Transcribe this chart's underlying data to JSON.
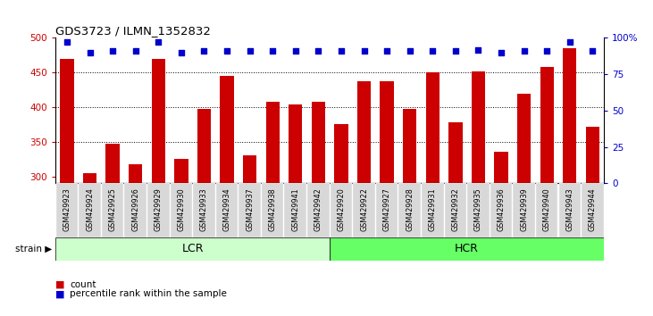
{
  "title": "GDS3723 / ILMN_1352832",
  "categories": [
    "GSM429923",
    "GSM429924",
    "GSM429925",
    "GSM429926",
    "GSM429929",
    "GSM429930",
    "GSM429933",
    "GSM429934",
    "GSM429937",
    "GSM429938",
    "GSM429941",
    "GSM429942",
    "GSM429920",
    "GSM429922",
    "GSM429927",
    "GSM429928",
    "GSM429931",
    "GSM429932",
    "GSM429935",
    "GSM429936",
    "GSM429939",
    "GSM429940",
    "GSM429943",
    "GSM429944"
  ],
  "bar_values": [
    470,
    305,
    347,
    318,
    470,
    325,
    397,
    445,
    330,
    408,
    404,
    408,
    375,
    437,
    437,
    397,
    450,
    378,
    452,
    335,
    420,
    458,
    485,
    372
  ],
  "percentile_values": [
    97,
    90,
    91,
    91,
    97,
    90,
    91,
    91,
    91,
    91,
    91,
    91,
    91,
    91,
    91,
    91,
    91,
    91,
    92,
    90,
    91,
    91,
    97,
    91
  ],
  "bar_color": "#cc0000",
  "dot_color": "#0000cc",
  "ylim_left": [
    290,
    500
  ],
  "ylim_right": [
    0,
    100
  ],
  "yticks_left": [
    300,
    350,
    400,
    450,
    500
  ],
  "yticks_right": [
    0,
    25,
    50,
    75,
    100
  ],
  "grid_values": [
    350,
    400,
    450
  ],
  "lcr_count": 12,
  "hcr_count": 12,
  "lcr_label": "LCR",
  "hcr_label": "HCR",
  "strain_label": "strain",
  "legend_count": "count",
  "legend_percentile": "percentile rank within the sample",
  "background_color": "#ffffff",
  "stripe_color_lcr": "#ccffcc",
  "stripe_color_hcr": "#66ff66",
  "tick_color_left": "#cc0000",
  "tick_color_right": "#0000cc",
  "bar_bottom": 290,
  "xlabel_bg": "#d8d8d8"
}
